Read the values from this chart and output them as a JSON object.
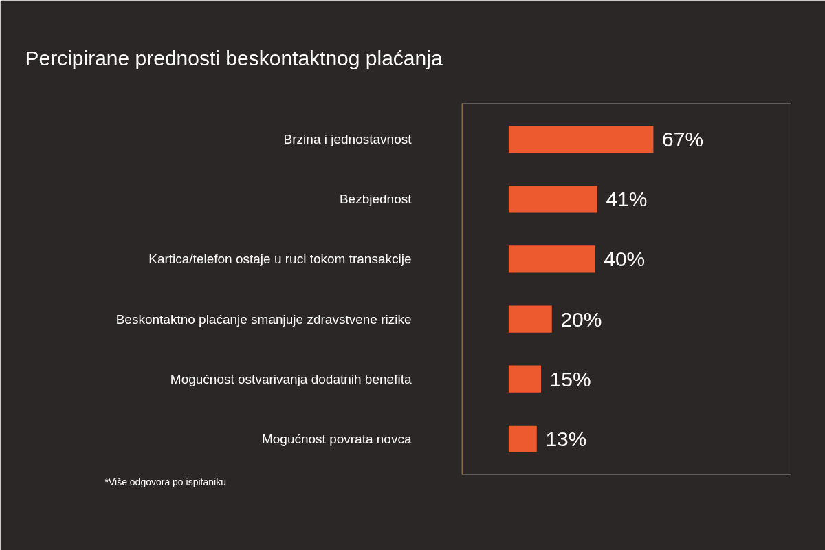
{
  "chart_data": {
    "type": "bar",
    "orientation": "horizontal",
    "title": "Percipirane prednosti beskontaktnog plaćanja",
    "categories": [
      "Brzina i jednostavnost",
      "Bezbjednost",
      "Kartica/telefon ostaje u ruci tokom transakcije",
      "Beskontaktno plaćanje smanjuje zdravstvene rizike",
      "Mogućnost ostvarivanja dodatnih benefita",
      "Mogućnost povrata novca"
    ],
    "values": [
      67,
      41,
      40,
      20,
      15,
      13
    ],
    "value_labels": [
      "67%",
      "41%",
      "40%",
      "20%",
      "15%",
      "13%"
    ],
    "color": "#ee5a2f",
    "annotations": [
      "*Više odgovora po ispitaniku"
    ],
    "grid": false
  }
}
